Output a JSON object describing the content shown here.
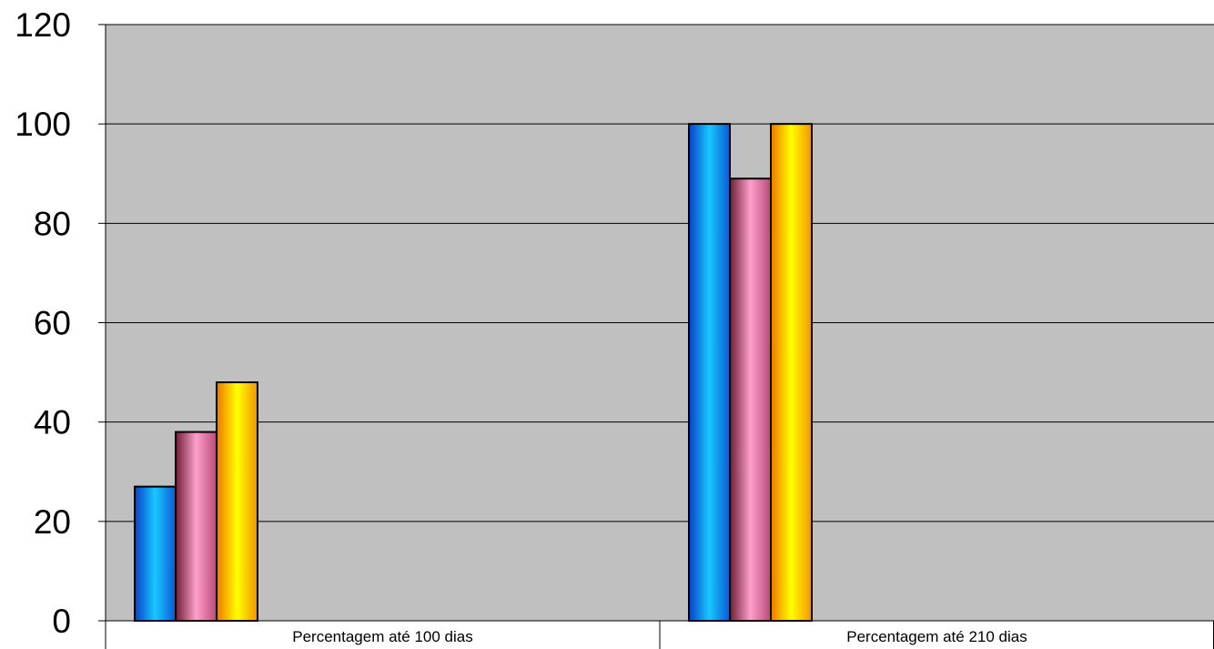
{
  "chart_data": {
    "type": "bar",
    "title": "",
    "xlabel": "",
    "ylabel": "",
    "categories": [
      "Percentagem até 100 dias",
      "Percentagem até 210 dias"
    ],
    "series": [
      {
        "values": [
          27,
          100
        ],
        "color": "#1ea0ff"
      },
      {
        "values": [
          38,
          89
        ],
        "color": "#f07fb0"
      },
      {
        "values": [
          48,
          100
        ],
        "color": "#ffd400"
      }
    ],
    "ylim": [
      0,
      120
    ],
    "yticks": [
      0,
      20,
      40,
      60,
      80,
      100,
      120
    ],
    "grid": true,
    "legend": "none",
    "plot_background": "#c0c0c0"
  }
}
